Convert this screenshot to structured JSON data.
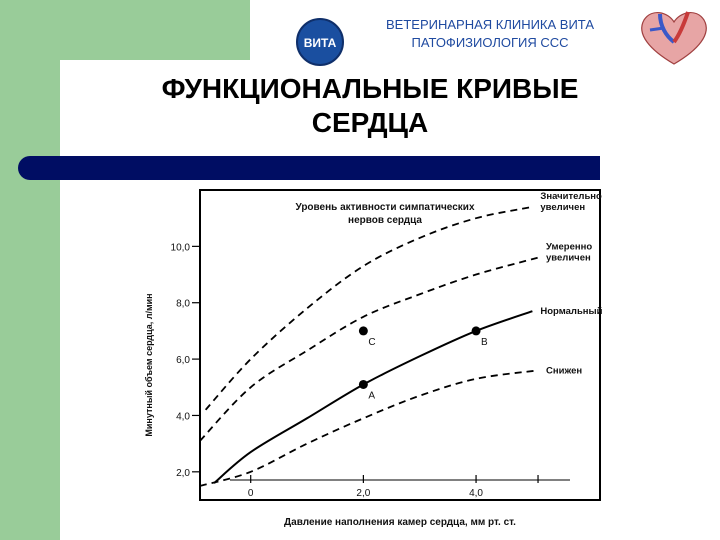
{
  "header": {
    "clinic": "ВЕТЕРИНАРНАЯ КЛИНИКА ВИТА",
    "subject": "ПАТОФИЗИОЛОГИЯ ССС",
    "logo_text": "ВИТА"
  },
  "title_line1": "ФУНКЦИОНАЛЬНЫЕ КРИВЫЕ",
  "title_line2": "СЕРДЦА",
  "colors": {
    "green": "#99cc99",
    "navy_bar": "#000d63",
    "header_text": "#1f4aa0"
  },
  "chart_data": {
    "type": "line",
    "legend_title_line1": "Уровень активности симпатических",
    "legend_title_line2": "нервов сердца",
    "xlabel": "Давление наполнения камер сердца, мм рт. ст.",
    "ylabel": "Минутный объем сердца, л/мин",
    "xlim": [
      -0.9,
      6.2
    ],
    "ylim": [
      1.0,
      12.0
    ],
    "x_ticks": [
      "0",
      "2,0",
      "4,0"
    ],
    "x_tick_values": [
      0,
      2,
      4
    ],
    "y_ticks": [
      "2,0",
      "4,0",
      "6,0",
      "8,0",
      "10,0"
    ],
    "y_tick_values": [
      2,
      4,
      6,
      8,
      10
    ],
    "series": [
      {
        "name": "Значительно увеличен",
        "label_line1": "Значительно",
        "label_line2": "увеличен",
        "style": "dashed",
        "x": [
          -0.8,
          0,
          1,
          2,
          3,
          4,
          5
        ],
        "y": [
          4.2,
          6.0,
          7.8,
          9.3,
          10.3,
          11.0,
          11.4
        ]
      },
      {
        "name": "Умеренно увеличен",
        "label_line1": "Умеренно",
        "label_line2": "увеличен",
        "style": "dashed",
        "x": [
          -0.9,
          0,
          1,
          2,
          3,
          4,
          5.1
        ],
        "y": [
          3.1,
          5.0,
          6.3,
          7.5,
          8.3,
          9.0,
          9.6
        ]
      },
      {
        "name": "Нормальный",
        "label_line1": "Нормальный",
        "label_line2": "",
        "style": "solid",
        "x": [
          -0.65,
          0,
          1,
          2,
          3,
          4,
          5.0
        ],
        "y": [
          1.6,
          2.7,
          3.9,
          5.1,
          6.1,
          7.0,
          7.7
        ]
      },
      {
        "name": "Снижен",
        "label_line1": "Снижен",
        "label_line2": "",
        "style": "dashed",
        "x": [
          -0.9,
          0,
          1,
          2,
          3,
          4,
          5.1
        ],
        "y": [
          1.5,
          2.0,
          3.0,
          3.9,
          4.7,
          5.3,
          5.6
        ]
      }
    ],
    "points": [
      {
        "label": "A",
        "x": 2.0,
        "y": 5.1
      },
      {
        "label": "B",
        "x": 4.0,
        "y": 7.0
      },
      {
        "label": "C",
        "x": 2.0,
        "y": 7.0
      }
    ]
  }
}
